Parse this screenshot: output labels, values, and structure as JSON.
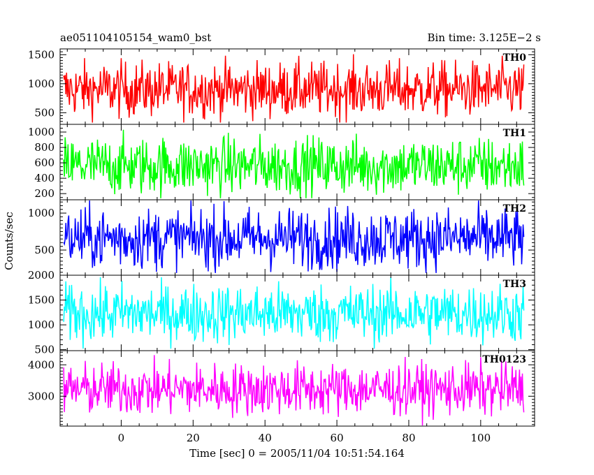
{
  "chart_data": {
    "type": "line",
    "title": "ae051104105154_wam0_bst",
    "subtitle": "Bin time: 3.125E−2 s",
    "xlabel": "Time [sec] 0 = 2005/11/04 10:51:54.164",
    "ylabel": "Counts/sec",
    "xlim": [
      -17,
      115
    ],
    "x_ticks": [
      0,
      20,
      40,
      60,
      80,
      100
    ],
    "x_tick_labels": [
      "0",
      "20",
      "40",
      "60",
      "80",
      "100"
    ],
    "data_x_range": [
      -16,
      112
    ],
    "legend": "per-panel label at top-right",
    "grid": false,
    "series": [
      {
        "name": "TH0",
        "color": "#ff0000",
        "ylim": [
          300,
          1600
        ],
        "mean": 900,
        "spread": 240,
        "floor": 330,
        "ceil": 1560,
        "y_ticks": [
          500,
          1000,
          1500
        ],
        "y_tick_labels": [
          "500",
          "1000",
          "1500"
        ]
      },
      {
        "name": "TH1",
        "color": "#00ff00",
        "ylim": [
          120,
          1100
        ],
        "mean": 560,
        "spread": 190,
        "floor": 140,
        "ceil": 1080,
        "y_ticks": [
          200,
          400,
          600,
          800,
          1000
        ],
        "y_tick_labels": [
          "200",
          "400",
          "600",
          "800",
          "1000"
        ]
      },
      {
        "name": "TH2",
        "color": "#0000ff",
        "ylim": [
          160,
          1180
        ],
        "mean": 660,
        "spread": 210,
        "floor": 190,
        "ceil": 1170,
        "y_ticks": [
          500,
          1000
        ],
        "y_tick_labels": [
          "500",
          "1000"
        ]
      },
      {
        "name": "TH3",
        "color": "#00ffff",
        "ylim": [
          480,
          2000
        ],
        "mean": 1230,
        "spread": 300,
        "floor": 520,
        "ceil": 1960,
        "y_ticks": [
          500,
          1000,
          1500,
          2000
        ],
        "y_tick_labels": [
          "500",
          "1000",
          "1500",
          "2000"
        ]
      },
      {
        "name": "TH0123",
        "color": "#ff00ff",
        "ylim": [
          2050,
          4450
        ],
        "mean": 3220,
        "spread": 420,
        "floor": 2070,
        "ceil": 4420,
        "y_ticks": [
          3000,
          4000
        ],
        "y_tick_labels": [
          "3000",
          "4000"
        ]
      }
    ]
  }
}
